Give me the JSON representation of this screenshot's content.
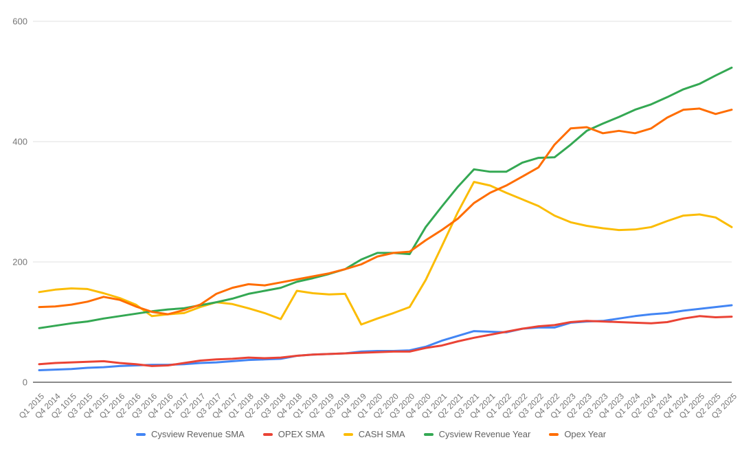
{
  "chart_data": {
    "type": "line",
    "title": "",
    "x_labels": [
      "Q1 2015",
      "Q4 2014",
      "Q2 1015",
      "Q3 2015",
      "Q4 2015",
      "Q1 2016",
      "Q2 2016",
      "Q3 2016",
      "Q4 2016",
      "Q1 2017",
      "Q2 2017",
      "Q3 2017",
      "Q4 2017",
      "Q1 2018",
      "Q2 2018",
      "Q3 2018",
      "Q4 2018",
      "Q1 2019",
      "Q2 2019",
      "Q3 2019",
      "Q4 2019",
      "Q1 2020",
      "Q2 2020",
      "Q3 2020",
      "Q4 2020",
      "Q1 2021",
      "Q2 2021",
      "Q3 2021",
      "Q4 2021",
      "Q1 2022",
      "Q2 2022",
      "Q3 2022",
      "Q4 2022",
      "Q1 2023",
      "Q2 2023",
      "Q3 2023",
      "Q4 2023",
      "Q1 2024",
      "Q2 2024",
      "Q3 2024",
      "Q4 2024",
      "Q1 2025",
      "Q2 2025",
      "Q3 2025"
    ],
    "series": [
      {
        "name": "Cysview Revenue SMA",
        "color": "#4285F4",
        "values": [
          20,
          21,
          22,
          24,
          25,
          27,
          28,
          29,
          29,
          30,
          32,
          33,
          35,
          37,
          38,
          39,
          44,
          46,
          47,
          48,
          51,
          52,
          52,
          53,
          59,
          69,
          77,
          85,
          84,
          83,
          89,
          91,
          91,
          99,
          101,
          102,
          106,
          110,
          113,
          115,
          119,
          122,
          125,
          128
        ]
      },
      {
        "name": "OPEX SMA",
        "color": "#EA4335",
        "values": [
          30,
          32,
          33,
          34,
          35,
          32,
          30,
          27,
          28,
          32,
          36,
          38,
          39,
          41,
          40,
          41,
          44,
          46,
          47,
          48,
          49,
          50,
          51,
          51,
          57,
          61,
          68,
          74,
          79,
          84,
          89,
          93,
          95,
          100,
          102,
          101,
          100,
          99,
          98,
          100,
          106,
          110,
          108,
          109
        ]
      },
      {
        "name": "CASH SMA",
        "color": "#FBBC04",
        "values": [
          150,
          154,
          156,
          155,
          148,
          140,
          129,
          110,
          113,
          115,
          125,
          133,
          130,
          123,
          115,
          105,
          152,
          148,
          146,
          147,
          96,
          106,
          115,
          125,
          170,
          226,
          283,
          333,
          327,
          315,
          304,
          293,
          277,
          266,
          260,
          256,
          253,
          254,
          258,
          268,
          277,
          279,
          274,
          258
        ]
      },
      {
        "name": "Cysview Revenue Year",
        "color": "#34A853",
        "values": [
          90,
          94,
          98,
          101,
          106,
          110,
          114,
          118,
          121,
          123,
          128,
          133,
          139,
          147,
          152,
          157,
          167,
          173,
          180,
          188,
          204,
          215,
          215,
          213,
          258,
          292,
          325,
          354,
          350,
          350,
          365,
          373,
          374,
          395,
          418,
          430,
          441,
          453,
          462,
          474,
          487,
          496,
          510,
          523
        ]
      },
      {
        "name": "Opex Year",
        "color": "#FF6D01",
        "values": [
          125,
          126,
          129,
          134,
          142,
          137,
          126,
          117,
          113,
          120,
          129,
          147,
          157,
          163,
          161,
          166,
          171,
          176,
          181,
          188,
          196,
          209,
          215,
          217,
          236,
          253,
          272,
          298,
          315,
          327,
          342,
          357,
          395,
          422,
          424,
          414,
          418,
          414,
          422,
          440,
          453,
          455,
          446,
          453
        ]
      }
    ],
    "y_axis": {
      "min": 0,
      "max": 600,
      "ticks": [
        0,
        200,
        400,
        600
      ]
    },
    "grid": true,
    "legend_position": "bottom",
    "colors": {
      "background": "#ffffff",
      "gridline": "#e6e6e6",
      "baseline": "#8a8a8a",
      "axis_label": "#757575",
      "legend_label": "#616161"
    }
  }
}
